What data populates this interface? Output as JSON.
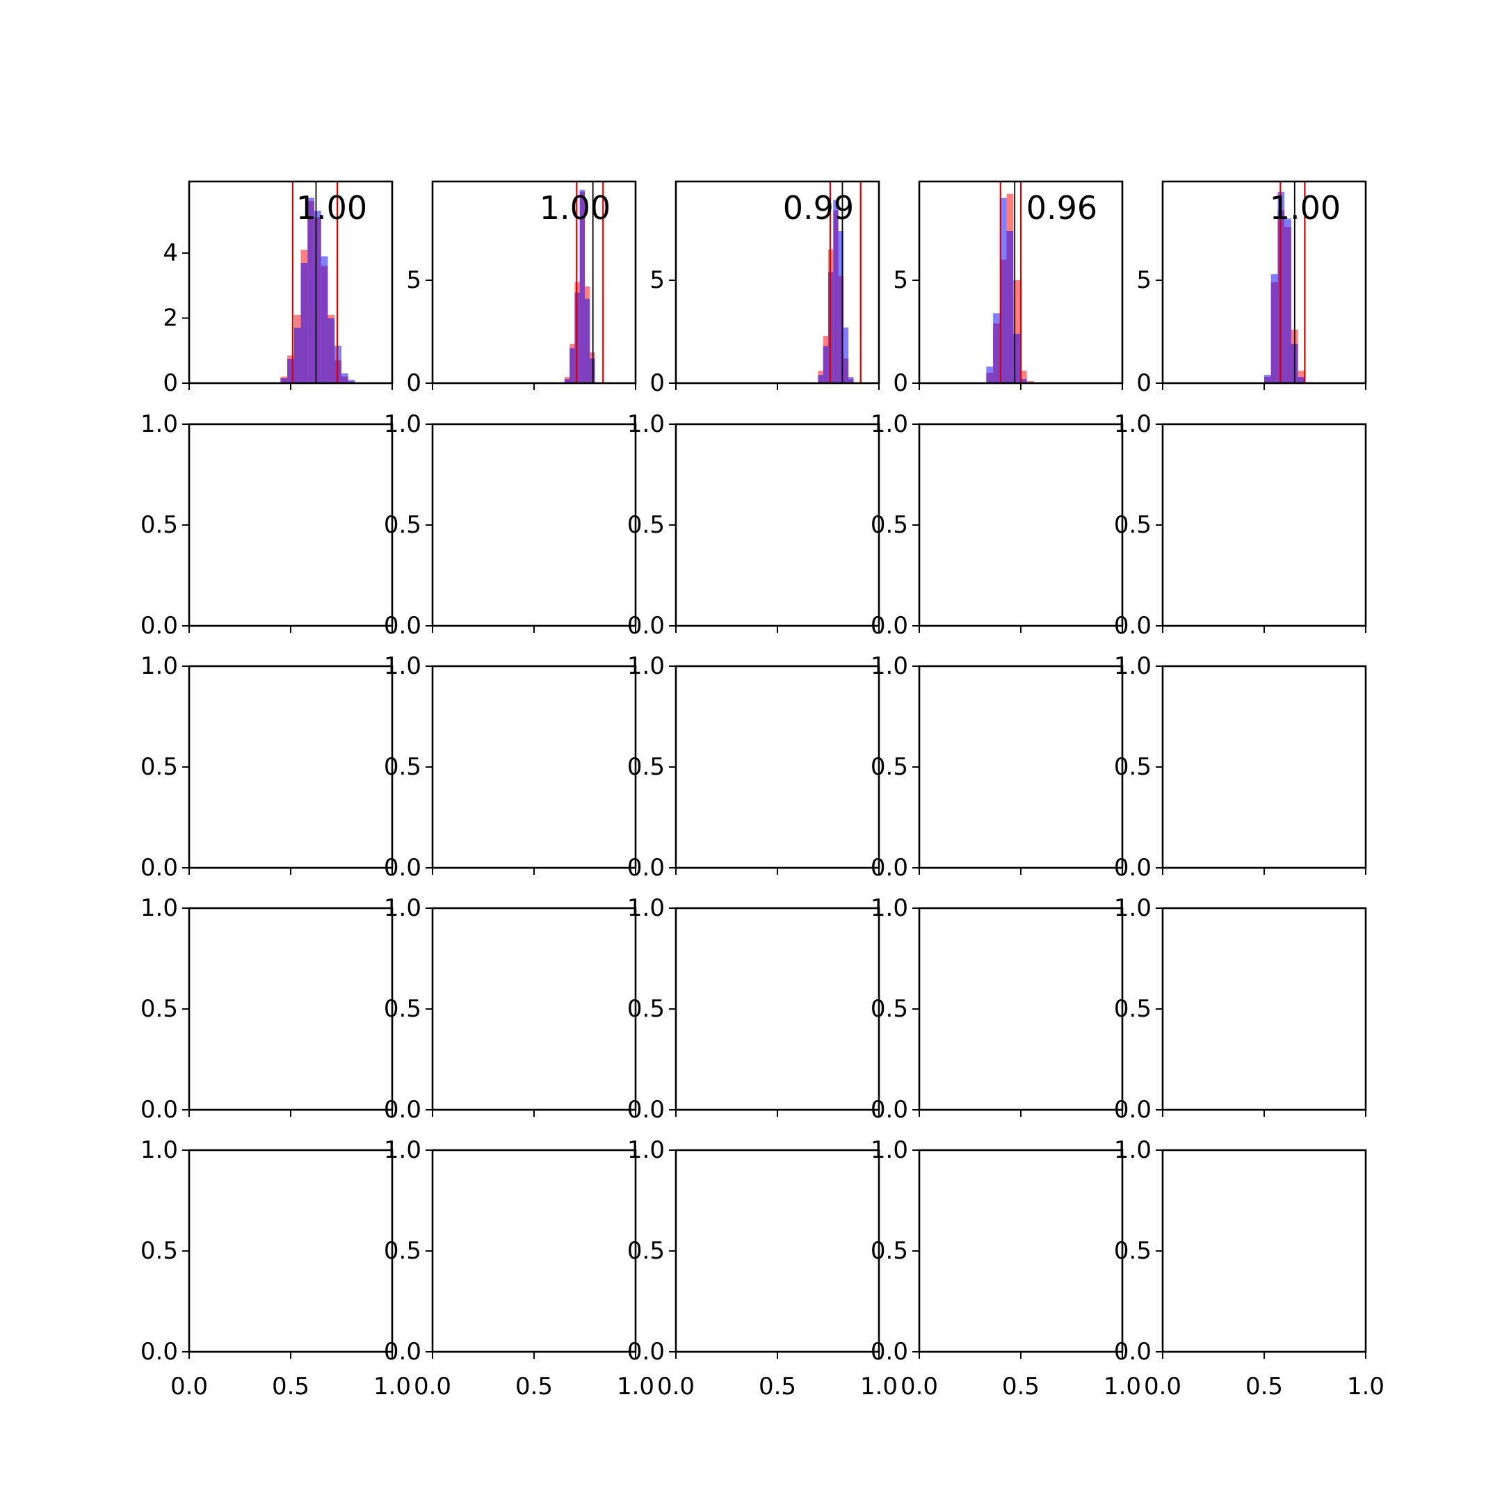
{
  "chart_data": {
    "type": "histogram-grid",
    "rows": 5,
    "cols": 5,
    "colors": {
      "series_a": "#ff0000",
      "series_b": "#0000ff",
      "overlap": "#7f3fbf",
      "interval_line": "#d40000",
      "center_line": "#000000",
      "axes": "#000000"
    },
    "default_xticks": [
      "0.0",
      "0.5",
      "1.0"
    ],
    "default_yticks": [
      "0.0",
      "0.5",
      "1.0"
    ],
    "hist_panels": [
      {
        "col": 0,
        "annotation": "1.00",
        "ylim": [
          0,
          6.2
        ],
        "yticks": [
          {
            "v": 0,
            "label": "0"
          },
          {
            "v": 2,
            "label": "2"
          },
          {
            "v": 4,
            "label": "4"
          }
        ],
        "bin_width": 0.0333,
        "bins_start": 0.45,
        "series_a": [
          0.2,
          0.85,
          2.1,
          4.1,
          5.6,
          5.1,
          3.6,
          2.1,
          0.7,
          0.2,
          0.05
        ],
        "series_b": [
          0.15,
          0.75,
          1.7,
          3.7,
          5.7,
          5.3,
          3.9,
          2.0,
          1.15,
          0.3,
          0.1
        ],
        "interval": [
          0.51,
          0.73
        ],
        "center": 0.625
      },
      {
        "col": 1,
        "annotation": "1.00",
        "ylim": [
          0,
          9.8
        ],
        "yticks": [
          {
            "v": 0,
            "label": "0"
          },
          {
            "v": 5,
            "label": "5"
          }
        ],
        "bin_width": 0.025,
        "bins_start": 0.65,
        "series_a": [
          0.3,
          1.9,
          4.9,
          9.3,
          4.7,
          1.5
        ],
        "series_b": [
          0.2,
          1.7,
          4.4,
          9.4,
          4.1,
          1.2
        ],
        "interval": [
          0.71,
          0.84
        ],
        "center": 0.79
      },
      {
        "col": 2,
        "annotation": "0.99",
        "ylim": [
          0,
          9.8
        ],
        "yticks": [
          {
            "v": 0,
            "label": "0"
          },
          {
            "v": 5,
            "label": "5"
          }
        ],
        "bin_width": 0.025,
        "bins_start": 0.7,
        "series_a": [
          0.6,
          2.3,
          6.5,
          8.4,
          5.2,
          1.2,
          0.2
        ],
        "series_b": [
          0.4,
          1.8,
          5.4,
          8.9,
          7.4,
          2.7,
          0.3
        ],
        "interval": [
          0.76,
          0.91
        ],
        "center": 0.82
      },
      {
        "col": 3,
        "annotation": "0.96",
        "ylim": [
          0,
          9.8
        ],
        "yticks": [
          {
            "v": 0,
            "label": "0"
          },
          {
            "v": 5,
            "label": "5"
          }
        ],
        "bin_width": 0.0333,
        "bins_start": 0.33,
        "series_a": [
          0.5,
          2.9,
          6.0,
          9.2,
          5.0,
          0.6,
          0.1
        ],
        "series_b": [
          0.8,
          3.4,
          9.0,
          7.4,
          2.4,
          0.2,
          0.05
        ],
        "interval": [
          0.4,
          0.5
        ],
        "center": 0.47
      },
      {
        "col": 4,
        "annotation": "1.00",
        "ylim": [
          0,
          9.8
        ],
        "yticks": [
          {
            "v": 0,
            "label": "0"
          },
          {
            "v": 5,
            "label": "5"
          }
        ],
        "bin_width": 0.0333,
        "bins_start": 0.5,
        "series_a": [
          0.3,
          4.9,
          8.4,
          7.6,
          2.6,
          0.6,
          0.05
        ],
        "series_b": [
          0.4,
          5.3,
          9.3,
          8.0,
          1.9,
          0.3,
          0.05
        ],
        "interval": [
          0.58,
          0.7
        ],
        "center": 0.65
      }
    ]
  }
}
